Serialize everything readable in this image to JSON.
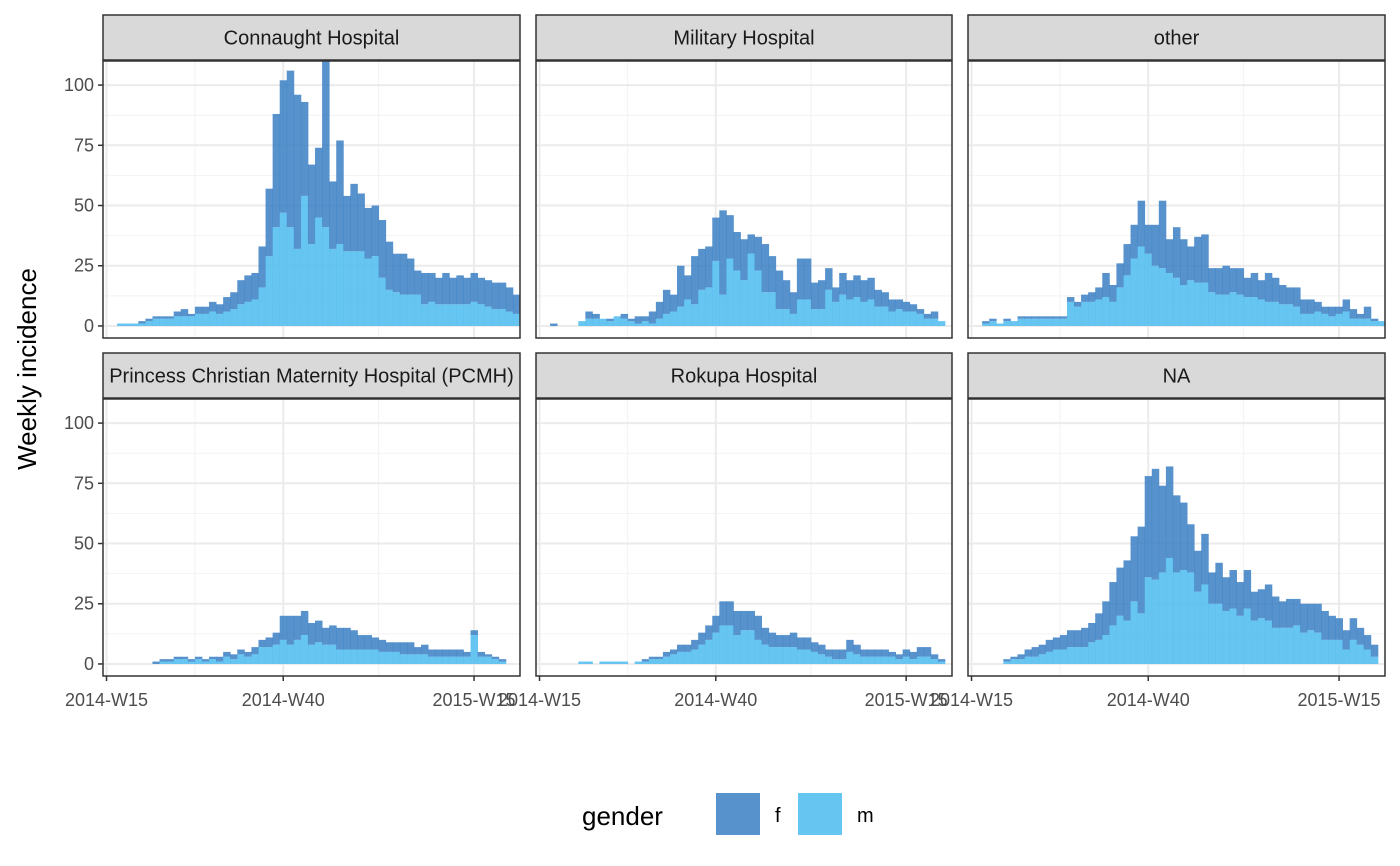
{
  "chart_data": {
    "type": "bar",
    "subtype": "stacked-histogram-faceted",
    "ylabel": "Weekly incidence",
    "xlabel": "",
    "ylim": [
      -5,
      110
    ],
    "y_ticks": [
      0,
      25,
      50,
      75,
      100
    ],
    "x_unit": "ISO week",
    "x_start": "2014-W17",
    "x_ticks": [
      {
        "label": "2014-W15",
        "week": -2
      },
      {
        "label": "2014-W40",
        "week": 23
      },
      {
        "label": "2015-W15",
        "week": 50
      }
    ],
    "xlim_weeks": [
      -2.5,
      56.5
    ],
    "grid": true,
    "legend": {
      "title": "gender",
      "position": "bottom",
      "entries": [
        {
          "key": "f",
          "label": "f",
          "color": "#3a7fc4"
        },
        {
          "key": "m",
          "label": "m",
          "color": "#56bff0"
        }
      ]
    },
    "colors": {
      "f": "#3a7fc4",
      "m": "#56bff0",
      "strip_bg": "#d9d9d9",
      "grid": "#ebebeb"
    },
    "panels": [
      {
        "name": "Connaught Hospital",
        "strip_label": "Connaught Hospital",
        "f": [
          0,
          0,
          0,
          1,
          1,
          1,
          1,
          1,
          2,
          3,
          1,
          3,
          3,
          4,
          4,
          6,
          7,
          10,
          11,
          11,
          17,
          28,
          47,
          55,
          65,
          64,
          39,
          33,
          29,
          69,
          28,
          43,
          23,
          28,
          24,
          21,
          21,
          24,
          20,
          16,
          17,
          15,
          10,
          13,
          12,
          11,
          13,
          11,
          12,
          11,
          12,
          11,
          11,
          11,
          11,
          10,
          8,
          4
        ],
        "m": [
          1,
          1,
          1,
          1,
          2,
          3,
          3,
          3,
          4,
          4,
          4,
          5,
          5,
          6,
          5,
          6,
          7,
          9,
          10,
          11,
          16,
          29,
          41,
          47,
          41,
          32,
          54,
          34,
          45,
          41,
          32,
          34,
          31,
          31,
          31,
          28,
          29,
          20,
          15,
          14,
          13,
          13,
          13,
          9,
          10,
          9,
          9,
          9,
          9,
          9,
          10,
          9,
          8,
          7,
          7,
          6,
          5,
          5
        ]
      },
      {
        "name": "Military Hospital",
        "strip_label": "Military Hospital",
        "f": [
          1,
          0,
          0,
          0,
          0,
          3,
          2,
          0,
          1,
          0,
          2,
          1,
          3,
          2,
          5,
          7,
          10,
          7,
          17,
          10,
          20,
          17,
          17,
          18,
          35,
          18,
          16,
          17,
          8,
          14,
          20,
          15,
          16,
          12,
          9,
          17,
          17,
          11,
          12,
          9,
          6,
          9,
          8,
          9,
          9,
          9,
          7,
          6,
          5,
          4,
          4,
          3,
          2,
          2,
          3,
          0
        ],
        "m": [
          0,
          0,
          0,
          0,
          2,
          3,
          3,
          3,
          2,
          4,
          3,
          2,
          1,
          2,
          1,
          3,
          5,
          6,
          8,
          11,
          9,
          15,
          16,
          27,
          13,
          28,
          23,
          19,
          30,
          23,
          14,
          14,
          7,
          7,
          5,
          11,
          11,
          7,
          7,
          15,
          10,
          13,
          11,
          12,
          10,
          11,
          8,
          8,
          6,
          7,
          6,
          6,
          5,
          3,
          3,
          2
        ]
      },
      {
        "name": "other",
        "strip_label": "other",
        "f": [
          1,
          1,
          0,
          1,
          0,
          1,
          1,
          1,
          1,
          1,
          1,
          1,
          2,
          2,
          3,
          4,
          5,
          10,
          7,
          10,
          13,
          14,
          19,
          12,
          17,
          28,
          14,
          21,
          19,
          14,
          19,
          20,
          10,
          11,
          12,
          10,
          11,
          8,
          10,
          8,
          12,
          10,
          8,
          7,
          8,
          6,
          6,
          4,
          3,
          4,
          3,
          5,
          4,
          2,
          5,
          1,
          0
        ],
        "m": [
          1,
          2,
          1,
          2,
          2,
          3,
          3,
          3,
          3,
          3,
          3,
          3,
          10,
          8,
          10,
          10,
          11,
          12,
          10,
          16,
          21,
          28,
          33,
          30,
          25,
          24,
          22,
          20,
          17,
          19,
          18,
          18,
          14,
          13,
          13,
          14,
          13,
          12,
          12,
          11,
          10,
          10,
          9,
          9,
          8,
          5,
          5,
          6,
          5,
          4,
          5,
          6,
          3,
          3,
          3,
          2,
          2
        ]
      },
      {
        "name": "Princess Christian Maternity Hospital (PCMH)",
        "strip_label": "Princess Christian Maternity Hospital (PCMH)",
        "f": [
          0,
          0,
          0,
          0,
          0,
          1,
          1,
          1,
          1,
          1,
          1,
          1,
          1,
          1,
          2,
          2,
          2,
          2,
          2,
          3,
          3,
          4,
          5,
          10,
          12,
          10,
          10,
          9,
          9,
          7,
          8,
          9,
          9,
          8,
          6,
          6,
          5,
          5,
          4,
          4,
          5,
          5,
          3,
          4,
          3,
          3,
          3,
          3,
          3,
          2,
          2,
          2,
          1,
          1,
          1
        ],
        "m": [
          0,
          0,
          0,
          0,
          0,
          0,
          1,
          1,
          2,
          2,
          1,
          2,
          1,
          2,
          1,
          3,
          2,
          4,
          3,
          4,
          7,
          7,
          8,
          10,
          8,
          10,
          12,
          8,
          9,
          8,
          8,
          6,
          6,
          6,
          6,
          6,
          6,
          5,
          5,
          5,
          4,
          4,
          4,
          4,
          3,
          3,
          3,
          3,
          3,
          3,
          12,
          3,
          3,
          2,
          1
        ]
      },
      {
        "name": "Rokupa Hospital",
        "strip_label": "Rokupa Hospital",
        "f": [
          0,
          0,
          0,
          0,
          0,
          0,
          0,
          0,
          0,
          0,
          0,
          0,
          0,
          1,
          1,
          1,
          2,
          2,
          3,
          3,
          4,
          5,
          6,
          7,
          10,
          10,
          10,
          8,
          8,
          10,
          7,
          6,
          5,
          5,
          6,
          5,
          5,
          4,
          4,
          3,
          4,
          4,
          5,
          4,
          3,
          3,
          3,
          3,
          2,
          2,
          3,
          3,
          4,
          4,
          2,
          1
        ],
        "m": [
          0,
          0,
          0,
          0,
          1,
          1,
          0,
          1,
          1,
          1,
          1,
          0,
          1,
          1,
          2,
          2,
          3,
          4,
          5,
          5,
          6,
          8,
          10,
          13,
          16,
          16,
          12,
          14,
          14,
          10,
          8,
          7,
          7,
          7,
          7,
          6,
          6,
          5,
          4,
          3,
          2,
          2,
          5,
          4,
          3,
          3,
          3,
          3,
          3,
          2,
          3,
          2,
          3,
          3,
          2,
          1
        ]
      },
      {
        "name": "NA",
        "strip_label": "NA",
        "f": [
          0,
          0,
          0,
          1,
          1,
          2,
          3,
          4,
          4,
          5,
          5,
          6,
          7,
          7,
          8,
          8,
          11,
          14,
          18,
          20,
          25,
          27,
          36,
          42,
          46,
          36,
          38,
          32,
          28,
          20,
          17,
          21,
          13,
          17,
          14,
          16,
          14,
          16,
          12,
          12,
          15,
          13,
          11,
          12,
          11,
          12,
          11,
          12,
          12,
          10,
          9,
          8,
          9,
          7,
          6,
          5
        ],
        "m": [
          0,
          0,
          0,
          1,
          2,
          2,
          3,
          3,
          4,
          5,
          6,
          6,
          7,
          7,
          7,
          9,
          10,
          12,
          16,
          20,
          18,
          26,
          21,
          36,
          35,
          38,
          44,
          38,
          39,
          38,
          30,
          33,
          25,
          25,
          22,
          23,
          20,
          23,
          18,
          19,
          18,
          15,
          15,
          15,
          16,
          13,
          14,
          13,
          10,
          10,
          10,
          6,
          10,
          8,
          6,
          3
        ]
      }
    ]
  }
}
